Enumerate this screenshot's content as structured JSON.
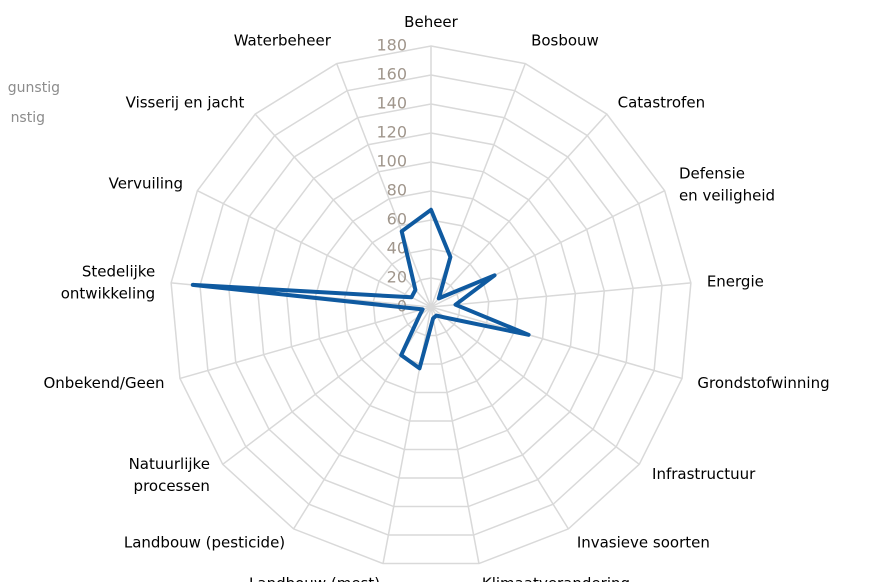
{
  "chart_data": {
    "type": "radar",
    "categories": [
      "Beheer",
      "Bosbouw",
      "Catastrofen",
      "Defensie en veiligheid",
      "Energie",
      "Grondstofwinning",
      "Infrastructuur",
      "Invasieve soorten",
      "Klimaatverandering",
      "Landbouw (mest)",
      "Landbouw (pesticide)",
      "Natuurlijke processen",
      "Onbekend/Geen",
      "Stedelijke ontwikkeling",
      "Vervuiling",
      "Visserij en jacht",
      "Waterbeheer"
    ],
    "series": [
      {
        "color": "#0f5aa0",
        "values": [
          67,
          37,
          8,
          49,
          17,
          70,
          12,
          7,
          8,
          43,
          39,
          10,
          6,
          165,
          15,
          16,
          56
        ]
      }
    ],
    "legend": [
      "gunstig",
      "nstig"
    ],
    "ylim": [
      0,
      180
    ],
    "yticks": [
      0,
      20,
      40,
      60,
      80,
      100,
      120,
      140,
      160,
      180
    ],
    "grid": true
  }
}
